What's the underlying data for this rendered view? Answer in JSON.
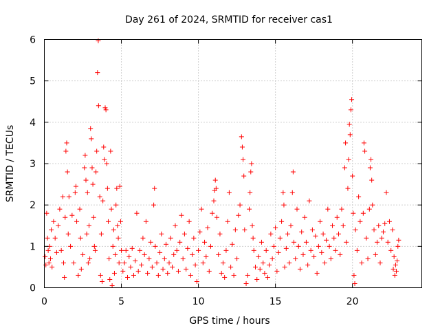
{
  "chart_data": {
    "type": "scatter",
    "title": "Day 261 of 2024, SRMTID for receiver cas1",
    "xlabel": "GPS time / hours",
    "ylabel": "SRMTID / TECUs",
    "xlim": [
      0,
      24.5
    ],
    "ylim": [
      0,
      6
    ],
    "xticks": [
      0,
      5,
      10,
      15,
      20
    ],
    "yticks": [
      0,
      1,
      2,
      3,
      4,
      5,
      6
    ],
    "grid": true,
    "marker": "plus",
    "color": "#ff0000",
    "series": [
      {
        "name": "SRMTID",
        "points": [
          [
            0.05,
            0.75
          ],
          [
            0.1,
            0.55
          ],
          [
            0.15,
            1.8
          ],
          [
            0.2,
            1.2
          ],
          [
            0.25,
            0.9
          ],
          [
            0.3,
            0.6
          ],
          [
            0.35,
            1.0
          ],
          [
            0.4,
            0.7
          ],
          [
            0.45,
            1.4
          ],
          [
            0.5,
            0.5
          ],
          [
            0.6,
            1.6
          ],
          [
            0.7,
            1.2
          ],
          [
            0.8,
            0.85
          ],
          [
            0.9,
            1.5
          ],
          [
            1.0,
            1.9
          ],
          [
            1.1,
            0.9
          ],
          [
            1.2,
            2.2
          ],
          [
            1.25,
            0.6
          ],
          [
            1.3,
            0.25
          ],
          [
            1.35,
            1.7
          ],
          [
            1.4,
            3.3
          ],
          [
            1.45,
            3.5
          ],
          [
            1.5,
            2.8
          ],
          [
            1.55,
            1.3
          ],
          [
            1.6,
            2.2
          ],
          [
            1.7,
            1.0
          ],
          [
            1.8,
            1.75
          ],
          [
            1.9,
            0.6
          ],
          [
            2.0,
            2.3
          ],
          [
            2.05,
            2.45
          ],
          [
            2.1,
            1.6
          ],
          [
            2.2,
            0.3
          ],
          [
            2.3,
            1.9
          ],
          [
            2.35,
            1.2
          ],
          [
            2.4,
            0.45
          ],
          [
            2.5,
            0.8
          ],
          [
            2.6,
            2.9
          ],
          [
            2.65,
            3.2
          ],
          [
            2.7,
            2.6
          ],
          [
            2.75,
            1.3
          ],
          [
            2.8,
            2.3
          ],
          [
            2.85,
            0.6
          ],
          [
            2.9,
            1.5
          ],
          [
            2.95,
            0.7
          ],
          [
            3.0,
            3.85
          ],
          [
            3.05,
            3.6
          ],
          [
            3.1,
            2.9
          ],
          [
            3.15,
            2.5
          ],
          [
            3.2,
            1.7
          ],
          [
            3.25,
            1.0
          ],
          [
            3.3,
            0.9
          ],
          [
            3.35,
            2.8
          ],
          [
            3.4,
            3.3
          ],
          [
            3.45,
            5.2
          ],
          [
            3.5,
            5.97
          ],
          [
            3.52,
            4.4
          ],
          [
            3.6,
            2.2
          ],
          [
            3.65,
            0.3
          ],
          [
            3.7,
            1.3
          ],
          [
            3.75,
            0.15
          ],
          [
            3.8,
            2.1
          ],
          [
            3.85,
            3.4
          ],
          [
            3.9,
            3.1
          ],
          [
            3.95,
            4.35
          ],
          [
            4.0,
            4.3
          ],
          [
            4.05,
            3.0
          ],
          [
            4.1,
            2.4
          ],
          [
            4.15,
            1.6
          ],
          [
            4.2,
            0.7
          ],
          [
            4.25,
            0.2
          ],
          [
            4.3,
            3.3
          ],
          [
            4.35,
            1.9
          ],
          [
            4.4,
            0.05
          ],
          [
            4.45,
            1.0
          ],
          [
            4.5,
            1.4
          ],
          [
            4.55,
            0.35
          ],
          [
            4.6,
            0.8
          ],
          [
            4.65,
            2.0
          ],
          [
            4.7,
            2.4
          ],
          [
            4.75,
            1.5
          ],
          [
            4.8,
            1.2
          ],
          [
            4.85,
            0.6
          ],
          [
            4.9,
            2.45
          ],
          [
            4.95,
            1.6
          ],
          [
            5.0,
            0.9
          ],
          [
            5.1,
            0.4
          ],
          [
            5.2,
            0.6
          ],
          [
            5.3,
            0.9
          ],
          [
            5.4,
            0.25
          ],
          [
            5.5,
            0.75
          ],
          [
            5.6,
            0.5
          ],
          [
            5.7,
            0.95
          ],
          [
            5.8,
            0.3
          ],
          [
            5.9,
            0.65
          ],
          [
            6.0,
            1.8
          ],
          [
            6.1,
            0.4
          ],
          [
            6.2,
            0.9
          ],
          [
            6.3,
            0.55
          ],
          [
            6.4,
            1.2
          ],
          [
            6.5,
            0.8
          ],
          [
            6.6,
            1.6
          ],
          [
            6.7,
            0.35
          ],
          [
            6.8,
            0.7
          ],
          [
            6.9,
            1.1
          ],
          [
            7.0,
            0.5
          ],
          [
            7.1,
            2.0
          ],
          [
            7.15,
            2.4
          ],
          [
            7.2,
            1.0
          ],
          [
            7.3,
            0.6
          ],
          [
            7.4,
            0.3
          ],
          [
            7.5,
            0.85
          ],
          [
            7.6,
            1.3
          ],
          [
            7.7,
            0.45
          ],
          [
            7.8,
            0.7
          ],
          [
            7.9,
            1.05
          ],
          [
            8.0,
            0.35
          ],
          [
            8.1,
            0.6
          ],
          [
            8.2,
            1.2
          ],
          [
            8.3,
            0.5
          ],
          [
            8.4,
            0.8
          ],
          [
            8.5,
            1.5
          ],
          [
            8.6,
            0.9
          ],
          [
            8.7,
            0.4
          ],
          [
            8.8,
            1.1
          ],
          [
            8.9,
            1.75
          ],
          [
            9.0,
            0.7
          ],
          [
            9.1,
            1.3
          ],
          [
            9.2,
            0.45
          ],
          [
            9.3,
            0.95
          ],
          [
            9.4,
            1.6
          ],
          [
            9.5,
            0.3
          ],
          [
            9.6,
            0.8
          ],
          [
            9.7,
            1.2
          ],
          [
            9.8,
            0.55
          ],
          [
            9.9,
            0.15
          ],
          [
            10.0,
            0.9
          ],
          [
            10.1,
            1.35
          ],
          [
            10.2,
            1.9
          ],
          [
            10.3,
            0.6
          ],
          [
            10.4,
            1.1
          ],
          [
            10.5,
            0.75
          ],
          [
            10.6,
            1.45
          ],
          [
            10.7,
            0.4
          ],
          [
            10.8,
            1.0
          ],
          [
            10.9,
            1.8
          ],
          [
            11.0,
            2.1
          ],
          [
            11.05,
            2.35
          ],
          [
            11.1,
            2.6
          ],
          [
            11.15,
            2.4
          ],
          [
            11.2,
            1.7
          ],
          [
            11.3,
            0.8
          ],
          [
            11.4,
            1.3
          ],
          [
            11.5,
            0.35
          ],
          [
            11.6,
            0.6
          ],
          [
            11.7,
            0.25
          ],
          [
            11.8,
            0.9
          ],
          [
            11.9,
            1.6
          ],
          [
            12.0,
            2.3
          ],
          [
            12.1,
            0.5
          ],
          [
            12.2,
            1.05
          ],
          [
            12.3,
            0.3
          ],
          [
            12.4,
            1.4
          ],
          [
            12.5,
            0.7
          ],
          [
            12.6,
            1.75
          ],
          [
            12.7,
            2.0
          ],
          [
            12.8,
            3.65
          ],
          [
            12.85,
            3.4
          ],
          [
            12.9,
            3.1
          ],
          [
            12.95,
            2.7
          ],
          [
            13.0,
            1.4
          ],
          [
            13.1,
            0.1
          ],
          [
            13.2,
            0.3
          ],
          [
            13.3,
            1.9
          ],
          [
            13.35,
            2.3
          ],
          [
            13.4,
            2.8
          ],
          [
            13.45,
            3.0
          ],
          [
            13.5,
            1.5
          ],
          [
            13.55,
            1.2
          ],
          [
            13.6,
            0.9
          ],
          [
            13.7,
            0.5
          ],
          [
            13.8,
            0.2
          ],
          [
            13.9,
            0.75
          ],
          [
            14.0,
            0.45
          ],
          [
            14.1,
            1.1
          ],
          [
            14.2,
            0.6
          ],
          [
            14.3,
            0.35
          ],
          [
            14.4,
            0.9
          ],
          [
            14.5,
            0.25
          ],
          [
            14.6,
            0.55
          ],
          [
            14.7,
            1.3
          ],
          [
            14.8,
            0.7
          ],
          [
            14.9,
            1.0
          ],
          [
            15.0,
            1.45
          ],
          [
            15.1,
            0.4
          ],
          [
            15.2,
            0.85
          ],
          [
            15.3,
            1.2
          ],
          [
            15.4,
            1.6
          ],
          [
            15.5,
            2.3
          ],
          [
            15.55,
            2.0
          ],
          [
            15.6,
            0.5
          ],
          [
            15.7,
            0.95
          ],
          [
            15.8,
            1.3
          ],
          [
            15.9,
            0.6
          ],
          [
            16.0,
            1.5
          ],
          [
            16.1,
            2.3
          ],
          [
            16.15,
            2.8
          ],
          [
            16.2,
            1.1
          ],
          [
            16.3,
            0.7
          ],
          [
            16.4,
            1.9
          ],
          [
            16.5,
            1.0
          ],
          [
            16.6,
            0.45
          ],
          [
            16.7,
            1.35
          ],
          [
            16.8,
            0.8
          ],
          [
            16.9,
            1.7
          ],
          [
            17.0,
            1.1
          ],
          [
            17.1,
            0.55
          ],
          [
            17.2,
            2.1
          ],
          [
            17.3,
            0.9
          ],
          [
            17.4,
            1.4
          ],
          [
            17.5,
            0.75
          ],
          [
            17.6,
            1.25
          ],
          [
            17.7,
            0.35
          ],
          [
            17.8,
            1.0
          ],
          [
            17.9,
            1.6
          ],
          [
            18.0,
            0.85
          ],
          [
            18.1,
            1.3
          ],
          [
            18.2,
            0.6
          ],
          [
            18.3,
            1.15
          ],
          [
            18.4,
            1.9
          ],
          [
            18.5,
            1.0
          ],
          [
            18.6,
            0.7
          ],
          [
            18.7,
            1.5
          ],
          [
            18.8,
            1.2
          ],
          [
            18.9,
            0.9
          ],
          [
            19.0,
            1.7
          ],
          [
            19.1,
            1.3
          ],
          [
            19.2,
            0.8
          ],
          [
            19.3,
            1.9
          ],
          [
            19.4,
            1.5
          ],
          [
            19.5,
            2.9
          ],
          [
            19.55,
            3.5
          ],
          [
            19.6,
            1.1
          ],
          [
            19.7,
            2.4
          ],
          [
            19.75,
            3.1
          ],
          [
            19.8,
            3.95
          ],
          [
            19.85,
            3.7
          ],
          [
            19.9,
            4.3
          ],
          [
            19.95,
            4.55
          ],
          [
            20.0,
            2.7
          ],
          [
            20.05,
            1.8
          ],
          [
            20.1,
            0.3
          ],
          [
            20.15,
            0.1
          ],
          [
            20.2,
            1.4
          ],
          [
            20.3,
            0.9
          ],
          [
            20.4,
            2.2
          ],
          [
            20.5,
            1.6
          ],
          [
            20.6,
            0.6
          ],
          [
            20.7,
            1.8
          ],
          [
            20.75,
            3.5
          ],
          [
            20.8,
            3.3
          ],
          [
            20.9,
            1.2
          ],
          [
            21.0,
            0.7
          ],
          [
            21.1,
            1.9
          ],
          [
            21.15,
            2.9
          ],
          [
            21.2,
            3.1
          ],
          [
            21.25,
            2.6
          ],
          [
            21.3,
            2.0
          ],
          [
            21.4,
            1.4
          ],
          [
            21.5,
            0.8
          ],
          [
            21.6,
            1.1
          ],
          [
            21.7,
            1.5
          ],
          [
            21.8,
            0.6
          ],
          [
            21.9,
            1.2
          ],
          [
            22.0,
            1.35
          ],
          [
            22.1,
            1.55
          ],
          [
            22.2,
            2.3
          ],
          [
            22.3,
            1.1
          ],
          [
            22.4,
            1.6
          ],
          [
            22.5,
            0.9
          ],
          [
            22.6,
            1.4
          ],
          [
            22.65,
            0.45
          ],
          [
            22.7,
            0.75
          ],
          [
            22.75,
            0.3
          ],
          [
            22.8,
            0.55
          ],
          [
            22.85,
            0.4
          ],
          [
            22.9,
            0.65
          ],
          [
            22.95,
            1.0
          ],
          [
            23.0,
            1.15
          ]
        ]
      }
    ]
  }
}
